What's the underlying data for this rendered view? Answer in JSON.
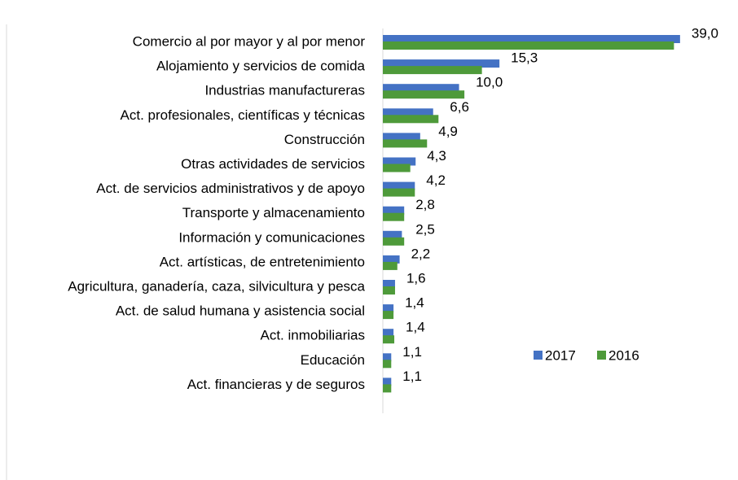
{
  "chart_data": {
    "type": "barh",
    "categories": [
      "Comercio al por mayor y al por menor",
      "Alojamiento y servicios de comida",
      "Industrias manufactureras",
      "Act. profesionales, científicas y técnicas",
      "Construcción",
      "Otras actividades de servicios",
      "Act. de servicios administrativos y de apoyo",
      "Transporte y almacenamiento",
      "Información y comunicaciones",
      "Act. artísticas, de entretenimiento",
      "Agricultura, ganadería, caza, silvicultura y pesca",
      "Act. de salud humana y asistencia social",
      "Act. inmobiliarias",
      "Educación",
      "Act. financieras y de seguros"
    ],
    "series": [
      {
        "name": "2017",
        "color": "#4472c4",
        "values": [
          39.0,
          15.3,
          10.0,
          6.6,
          4.9,
          4.3,
          4.2,
          2.8,
          2.5,
          2.2,
          1.6,
          1.4,
          1.4,
          1.1,
          1.1
        ],
        "value_labels": [
          "39,0",
          "15,3",
          "10,0",
          "6,6",
          "4,9",
          "4,3",
          "4,2",
          "2,8",
          "2,5",
          "2,2",
          "1,6",
          "1,4",
          "1,4",
          "1,1",
          "1,1"
        ]
      },
      {
        "name": "2016",
        "color": "#4e9a3a",
        "values": [
          38.2,
          13.0,
          10.7,
          7.3,
          5.8,
          3.6,
          4.2,
          2.8,
          2.8,
          1.9,
          1.6,
          1.4,
          1.5,
          1.1,
          1.1
        ]
      }
    ],
    "xlim": [
      0,
      45
    ],
    "legend": "right"
  }
}
